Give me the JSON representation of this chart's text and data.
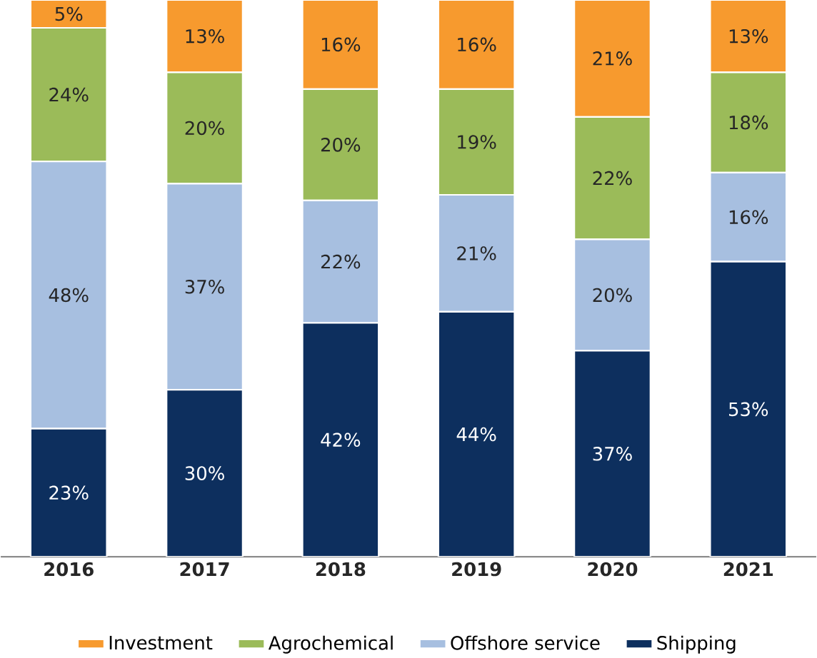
{
  "chart_data": {
    "type": "bar",
    "stacked": true,
    "legend": "bottom",
    "categories": [
      "2016",
      "2017",
      "2018",
      "2019",
      "2020",
      "2021"
    ],
    "series": [
      {
        "name": "Shipping",
        "color": "#0d2f5e",
        "values": [
          23,
          30,
          42,
          44,
          37,
          53
        ],
        "value_labels": [
          "23%",
          "30%",
          "42%",
          "44%",
          "37%",
          "53%"
        ]
      },
      {
        "name": "Offshore service",
        "color": "#a7bfe0",
        "values": [
          48,
          37,
          22,
          21,
          20,
          16
        ],
        "value_labels": [
          "48%",
          "37%",
          "22%",
          "21%",
          "20%",
          "16%"
        ]
      },
      {
        "name": "Agrochemical",
        "color": "#9bbb59",
        "values": [
          24,
          20,
          20,
          19,
          22,
          18
        ],
        "value_labels": [
          "24%",
          "20%",
          "20%",
          "19%",
          "22%",
          "18%"
        ]
      },
      {
        "name": "Investment",
        "color": "#f79a2e",
        "values": [
          5,
          13,
          16,
          16,
          21,
          13
        ],
        "value_labels": [
          "5%",
          "13%",
          "16%",
          "16%",
          "21%",
          "13%"
        ]
      }
    ]
  }
}
